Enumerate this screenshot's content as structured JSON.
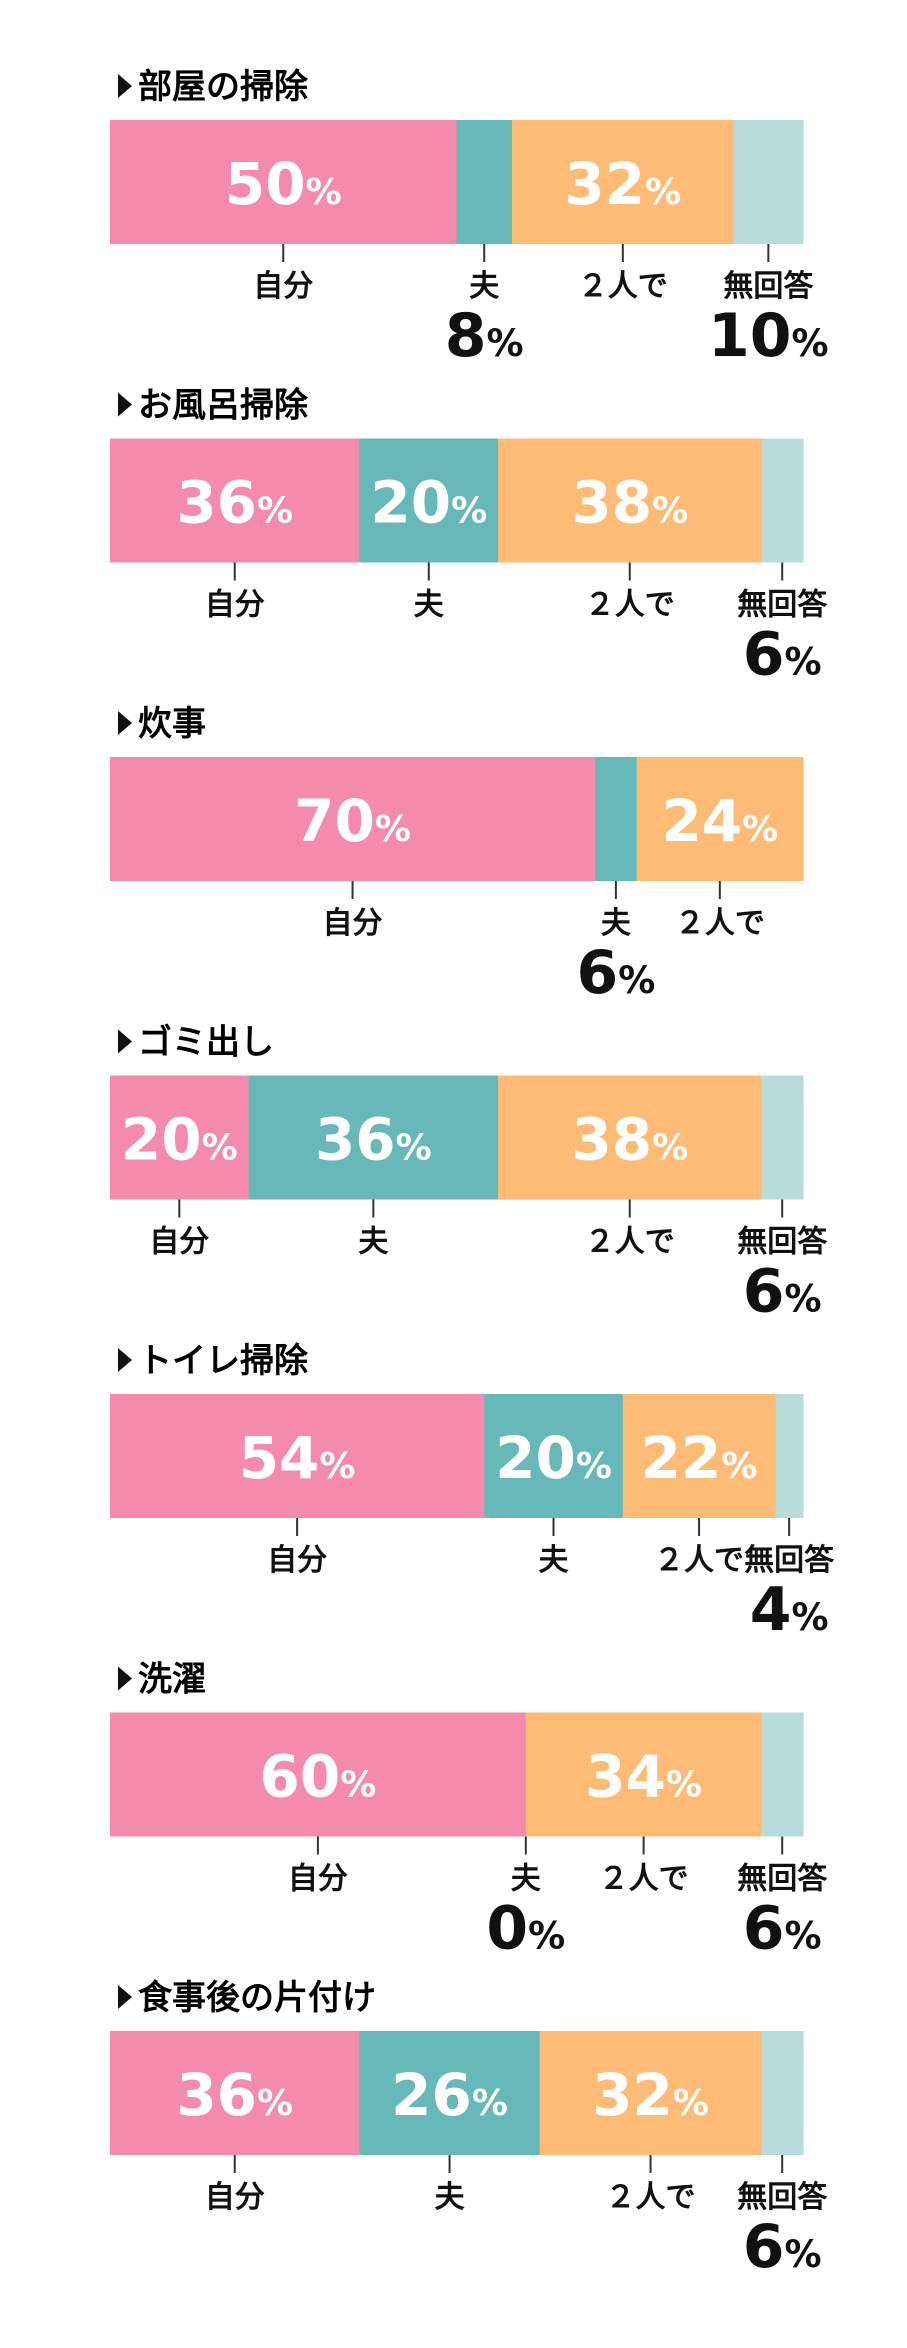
{
  "chart_data": {
    "type": "bar",
    "orientation": "horizontal-stacked-100",
    "legend": "none",
    "categories": [
      "自分",
      "夫",
      "２人で",
      "無回答"
    ],
    "colors": {
      "自分": "#f48bac",
      "夫": "#66b8b9",
      "２人で": "#fdbb76",
      "無回答": "#b8dcda"
    },
    "percent_sign": "%",
    "rows": [
      {
        "title": "部屋の掃除",
        "values": [
          50,
          8,
          32,
          10
        ]
      },
      {
        "title": "お風呂掃除",
        "values": [
          36,
          20,
          38,
          6
        ]
      },
      {
        "title": "炊事",
        "values": [
          70,
          6,
          24
        ]
      },
      {
        "title": "ゴミ出し",
        "values": [
          20,
          36,
          38,
          6
        ]
      },
      {
        "title": "トイレ掃除",
        "values": [
          54,
          20,
          22,
          4
        ]
      },
      {
        "title": "洗濯",
        "values": [
          60,
          0,
          34,
          6
        ]
      },
      {
        "title": "食事後の片付け",
        "values": [
          36,
          26,
          32,
          6
        ]
      }
    ]
  }
}
